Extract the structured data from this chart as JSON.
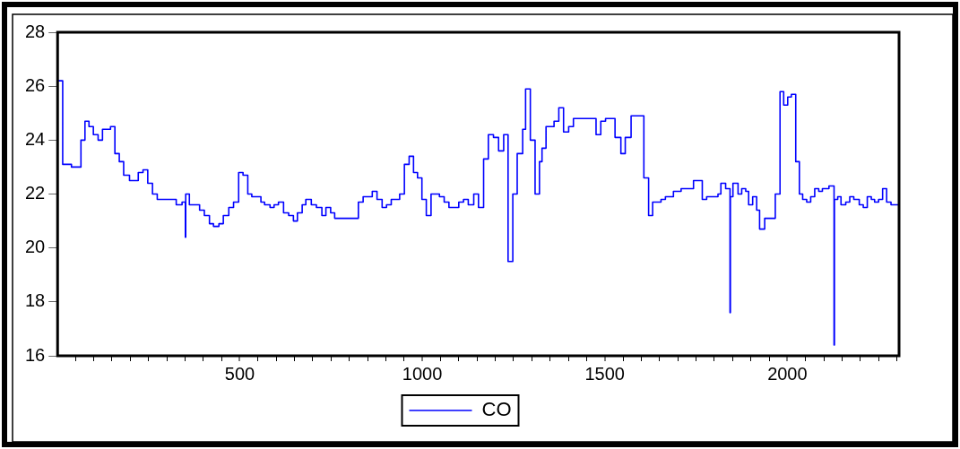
{
  "chart_data": {
    "type": "step",
    "x": [
      1,
      15,
      39,
      65,
      76,
      87,
      99,
      112,
      124,
      146,
      158,
      170,
      182,
      198,
      222,
      235,
      248,
      261,
      274,
      326,
      342,
      351,
      352,
      362,
      390,
      403,
      417,
      428,
      443,
      455,
      470,
      483,
      497,
      509,
      522,
      533,
      558,
      568,
      583,
      594,
      606,
      620,
      634,
      647,
      658,
      671,
      681,
      696,
      710,
      725,
      736,
      749,
      760,
      825,
      838,
      863,
      876,
      890,
      902,
      915,
      938,
      951,
      964,
      976,
      987,
      999,
      1011,
      1024,
      1047,
      1060,
      1073,
      1100,
      1113,
      1126,
      1141,
      1154,
      1168,
      1181,
      1195,
      1209,
      1223,
      1235,
      1248,
      1260,
      1275,
      1283,
      1296,
      1309,
      1321,
      1328,
      1339,
      1361,
      1374,
      1387,
      1401,
      1414,
      1476,
      1489,
      1502,
      1528,
      1544,
      1556,
      1572,
      1607,
      1620,
      1631,
      1654,
      1666,
      1688,
      1709,
      1743,
      1767,
      1779,
      1810,
      1818,
      1831,
      1843,
      1844,
      1851,
      1865,
      1875,
      1886,
      1894,
      1905,
      1916,
      1924,
      1938,
      1967,
      1980,
      1990,
      2001,
      2011,
      2023,
      2033,
      2042,
      2053,
      2064,
      2075,
      2086,
      2096,
      2114,
      2128,
      2129,
      2138,
      2147,
      2160,
      2171,
      2182,
      2197,
      2208,
      2219,
      2230,
      2239,
      2250,
      2261,
      2272,
      2284,
      2305
    ],
    "series": [
      {
        "name": "CO",
        "color": "#0000ff",
        "values": [
          26.2,
          23.1,
          23.0,
          24.0,
          24.7,
          24.5,
          24.2,
          24.0,
          24.4,
          24.5,
          23.5,
          23.2,
          22.7,
          22.5,
          22.8,
          22.9,
          22.4,
          22.0,
          21.8,
          21.6,
          21.7,
          20.4,
          22.0,
          21.6,
          21.4,
          21.2,
          20.9,
          20.8,
          20.9,
          21.2,
          21.5,
          21.7,
          22.8,
          22.7,
          22.0,
          21.9,
          21.7,
          21.6,
          21.5,
          21.6,
          21.7,
          21.3,
          21.2,
          21.0,
          21.3,
          21.6,
          21.8,
          21.6,
          21.5,
          21.2,
          21.5,
          21.3,
          21.1,
          21.7,
          21.9,
          22.1,
          21.8,
          21.5,
          21.6,
          21.8,
          22.0,
          23.1,
          23.4,
          22.8,
          22.6,
          21.8,
          21.2,
          22.0,
          21.9,
          21.7,
          21.5,
          21.7,
          21.8,
          21.6,
          22.0,
          21.5,
          23.3,
          24.2,
          24.1,
          23.6,
          24.2,
          19.5,
          22.0,
          23.5,
          24.4,
          25.9,
          24.0,
          22.0,
          23.2,
          23.7,
          24.5,
          24.7,
          25.2,
          24.3,
          24.5,
          24.8,
          24.2,
          24.7,
          24.8,
          24.1,
          23.5,
          24.1,
          24.9,
          22.6,
          21.2,
          21.7,
          21.8,
          21.9,
          22.1,
          22.2,
          22.5,
          21.8,
          21.9,
          22.0,
          22.4,
          22.2,
          17.6,
          21.9,
          22.4,
          22.0,
          22.2,
          22.1,
          21.6,
          21.9,
          21.4,
          20.7,
          21.1,
          22.0,
          25.8,
          25.3,
          25.6,
          25.7,
          23.2,
          22.0,
          21.8,
          21.7,
          21.9,
          22.2,
          22.1,
          22.2,
          22.3,
          16.4,
          21.8,
          21.9,
          21.6,
          21.7,
          21.9,
          21.8,
          21.6,
          21.5,
          21.9,
          21.8,
          21.7,
          21.8,
          22.2,
          21.7,
          21.6,
          21.6
        ]
      }
    ],
    "xlim": [
      1,
      2306
    ],
    "xticks": [
      {
        "value": 50,
        "label": null
      },
      {
        "value": 100,
        "label": null
      },
      {
        "value": 150,
        "label": null
      },
      {
        "value": 200,
        "label": null
      },
      {
        "value": 250,
        "label": null
      },
      {
        "value": 300,
        "label": null
      },
      {
        "value": 350,
        "label": null
      },
      {
        "value": 400,
        "label": null
      },
      {
        "value": 450,
        "label": null
      },
      500,
      {
        "value": 550,
        "label": null
      },
      {
        "value": 600,
        "label": null
      },
      {
        "value": 650,
        "label": null
      },
      {
        "value": 700,
        "label": null
      },
      {
        "value": 750,
        "label": null
      },
      {
        "value": 800,
        "label": null
      },
      {
        "value": 850,
        "label": null
      },
      {
        "value": 900,
        "label": null
      },
      {
        "value": 950,
        "label": null
      },
      1000,
      {
        "value": 1050,
        "label": null
      },
      {
        "value": 1100,
        "label": null
      },
      {
        "value": 1150,
        "label": null
      },
      {
        "value": 1200,
        "label": null
      },
      {
        "value": 1250,
        "label": null
      },
      {
        "value": 1300,
        "label": null
      },
      {
        "value": 1350,
        "label": null
      },
      {
        "value": 1400,
        "label": null
      },
      {
        "value": 1450,
        "label": null
      },
      1500,
      {
        "value": 1550,
        "label": null
      },
      {
        "value": 1600,
        "label": null
      },
      {
        "value": 1650,
        "label": null
      },
      {
        "value": 1700,
        "label": null
      },
      {
        "value": 1750,
        "label": null
      },
      {
        "value": 1800,
        "label": null
      },
      {
        "value": 1850,
        "label": null
      },
      {
        "value": 1900,
        "label": null
      },
      {
        "value": 1950,
        "label": null
      },
      2000,
      {
        "value": 2050,
        "label": null
      },
      {
        "value": 2100,
        "label": null
      },
      {
        "value": 2150,
        "label": null
      },
      {
        "value": 2200,
        "label": null
      },
      {
        "value": 2250,
        "label": null
      },
      {
        "value": 2300,
        "label": null
      }
    ],
    "ylim": [
      16,
      28
    ],
    "yticks": [
      16,
      18,
      20,
      22,
      24,
      26,
      28
    ],
    "grid": false,
    "legend": "bottom"
  }
}
